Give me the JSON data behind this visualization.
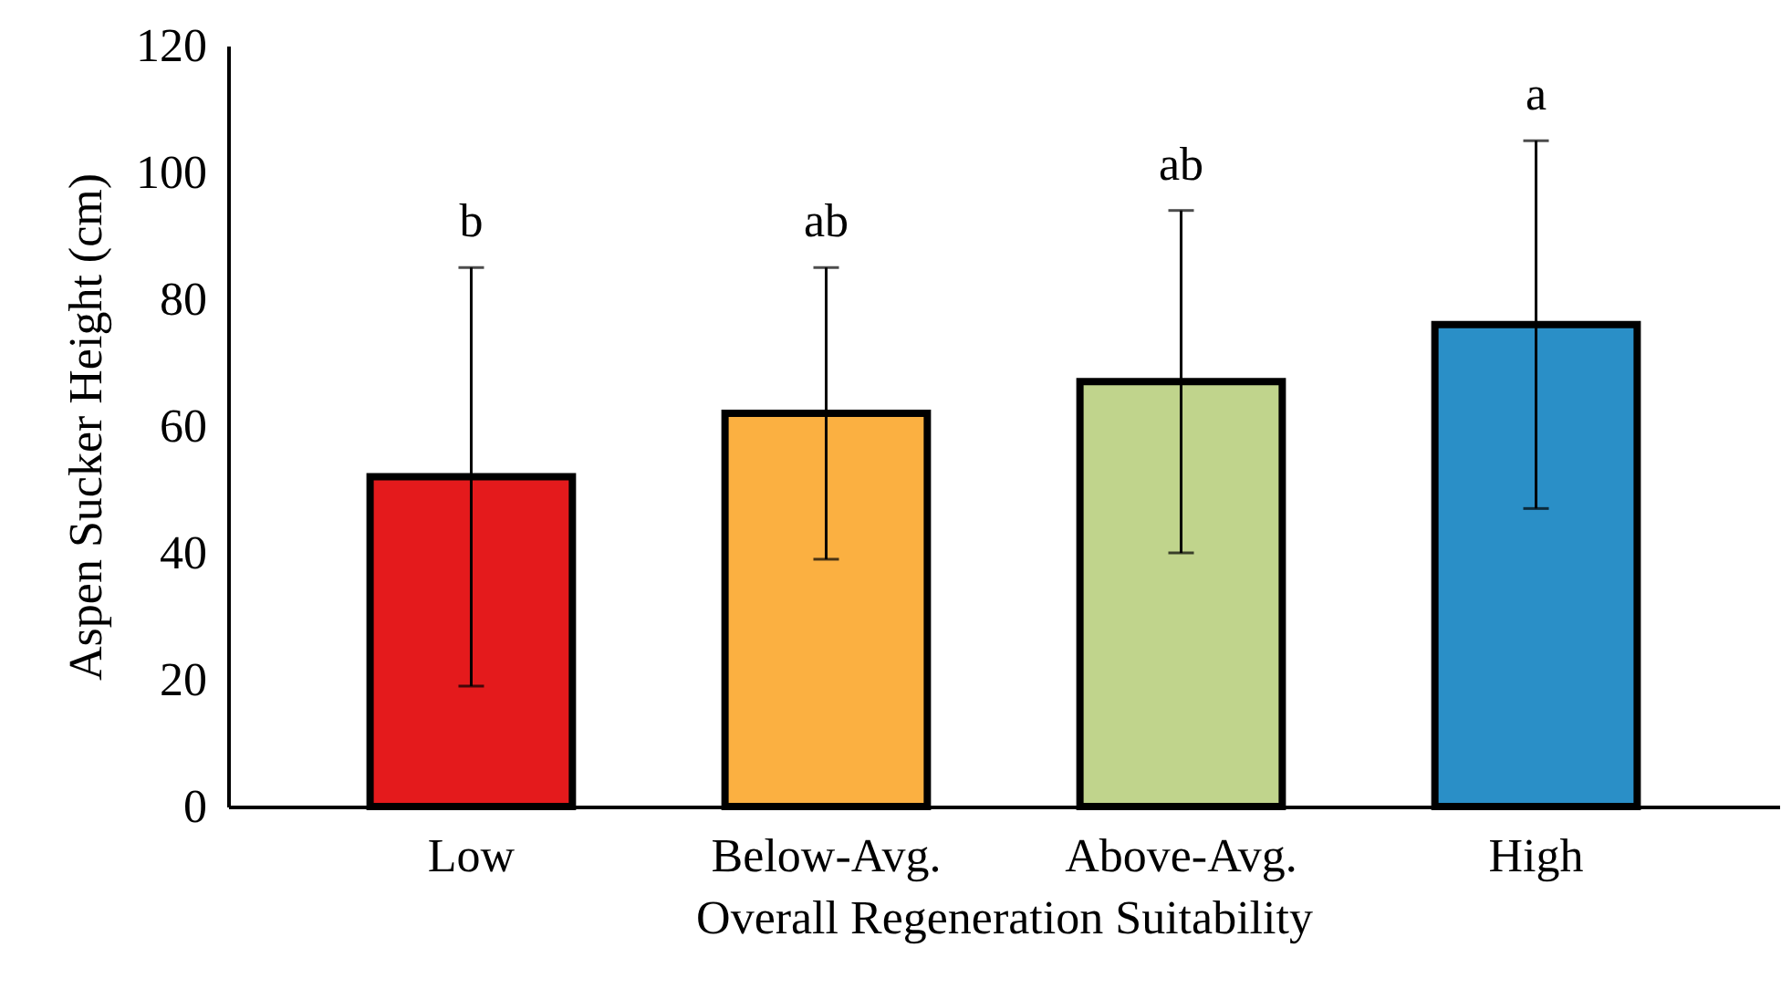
{
  "chart_data": {
    "type": "bar",
    "xlabel": "Overall Regeneration Suitability",
    "ylabel": "Aspen Sucker Height (cm)",
    "categories": [
      "Low",
      "Below-Avg.",
      "Above-Avg.",
      "High"
    ],
    "values": [
      52,
      62,
      67,
      76
    ],
    "errors": [
      33,
      23,
      27,
      29
    ],
    "colors": [
      "#e41a1c",
      "#fbb041",
      "#c0d48c",
      "#2a8fc7"
    ],
    "ylim": [
      0,
      120
    ],
    "yticks": [
      0,
      20,
      40,
      60,
      80,
      100,
      120
    ],
    "grid": false,
    "annotations": [
      "b",
      "ab",
      "ab",
      "a"
    ]
  }
}
